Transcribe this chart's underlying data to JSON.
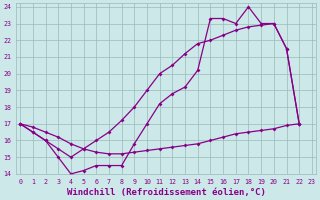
{
  "xlabel": "Windchill (Refroidissement éolien,°C)",
  "bg_color": "#cce8e8",
  "line_color": "#880088",
  "grid_color": "#99bbbb",
  "font_color": "#880088",
  "ylim": [
    14,
    24
  ],
  "xlim": [
    0,
    23
  ],
  "yticks": [
    14,
    15,
    16,
    17,
    18,
    19,
    20,
    21,
    22,
    23,
    24
  ],
  "line1_x": [
    0,
    1,
    2,
    3,
    4,
    5,
    6,
    7,
    8,
    9,
    10,
    11,
    12,
    13,
    14,
    15,
    16,
    17,
    18,
    19,
    20,
    21,
    22
  ],
  "line1_y": [
    17.0,
    16.5,
    16.0,
    15.0,
    14.0,
    14.2,
    14.5,
    14.5,
    14.5,
    15.8,
    17.0,
    18.2,
    18.8,
    19.2,
    20.2,
    23.3,
    23.3,
    23.0,
    24.0,
    23.0,
    23.0,
    21.5,
    17.0
  ],
  "line2_x": [
    0,
    1,
    2,
    3,
    4,
    5,
    6,
    7,
    8,
    9,
    10,
    11,
    12,
    13,
    14,
    15,
    16,
    17,
    18,
    19,
    20,
    21,
    22
  ],
  "line2_y": [
    17.0,
    16.5,
    16.0,
    15.5,
    15.0,
    15.5,
    16.0,
    16.5,
    17.2,
    18.0,
    19.0,
    20.0,
    20.5,
    21.2,
    21.8,
    22.0,
    22.3,
    22.6,
    22.8,
    22.9,
    23.0,
    21.5,
    17.0
  ],
  "line3_x": [
    0,
    1,
    2,
    3,
    4,
    5,
    6,
    7,
    8,
    9,
    10,
    11,
    12,
    13,
    14,
    15,
    16,
    17,
    18,
    19,
    20,
    21,
    22
  ],
  "line3_y": [
    17.0,
    16.8,
    16.5,
    16.2,
    15.8,
    15.5,
    15.3,
    15.2,
    15.2,
    15.3,
    15.4,
    15.5,
    15.6,
    15.7,
    15.8,
    16.0,
    16.2,
    16.4,
    16.5,
    16.6,
    16.7,
    16.9,
    17.0
  ]
}
